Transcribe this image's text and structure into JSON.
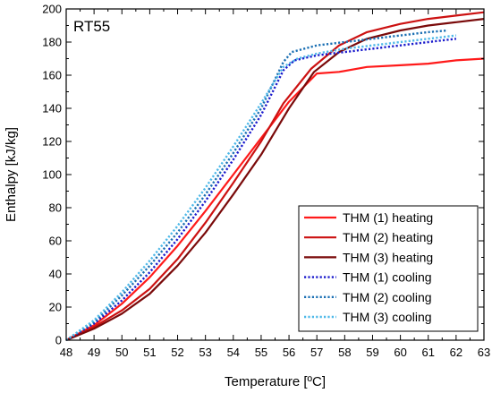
{
  "chart_data": {
    "type": "line",
    "annotation": "RT55",
    "xlabel": "Temperature [ºC]",
    "ylabel": "Enthalpy [kJ/kg]",
    "xlim": [
      48,
      63
    ],
    "ylim": [
      0,
      200
    ],
    "xticks": [
      48,
      49,
      50,
      51,
      52,
      53,
      54,
      55,
      56,
      57,
      58,
      59,
      60,
      61,
      62,
      63
    ],
    "yticks": [
      0,
      20,
      40,
      60,
      80,
      100,
      120,
      140,
      160,
      180,
      200
    ],
    "grid": false,
    "legend_position": "bottom-right",
    "series": [
      {
        "name": "THM (1) heating",
        "color": "#ff1a1a",
        "style": "solid",
        "points": [
          [
            48,
            0
          ],
          [
            49,
            9
          ],
          [
            50,
            22
          ],
          [
            51,
            38
          ],
          [
            52,
            57
          ],
          [
            53,
            78
          ],
          [
            54,
            100
          ],
          [
            55,
            122
          ],
          [
            56,
            144
          ],
          [
            57,
            161
          ],
          [
            57.8,
            162
          ],
          [
            58.8,
            165
          ],
          [
            60,
            166
          ],
          [
            61,
            167
          ],
          [
            62,
            169
          ],
          [
            63,
            170
          ]
        ]
      },
      {
        "name": "THM (2) heating",
        "color": "#cc1111",
        "style": "solid",
        "points": [
          [
            48,
            0
          ],
          [
            49,
            8
          ],
          [
            50,
            18
          ],
          [
            51,
            31
          ],
          [
            52,
            49
          ],
          [
            53,
            71
          ],
          [
            54,
            95
          ],
          [
            55,
            120
          ],
          [
            55.8,
            143
          ],
          [
            56.8,
            164
          ],
          [
            57.8,
            178
          ],
          [
            58.8,
            186
          ],
          [
            60,
            191
          ],
          [
            61,
            194
          ],
          [
            62,
            196
          ],
          [
            63,
            198
          ]
        ]
      },
      {
        "name": "THM (3) heating",
        "color": "#7a0a0a",
        "style": "solid",
        "points": [
          [
            48,
            0
          ],
          [
            49,
            7
          ],
          [
            50,
            16
          ],
          [
            51,
            28
          ],
          [
            52,
            45
          ],
          [
            53,
            65
          ],
          [
            54,
            88
          ],
          [
            55,
            112
          ],
          [
            56,
            140
          ],
          [
            56.9,
            162
          ],
          [
            57.8,
            174
          ],
          [
            58.8,
            182
          ],
          [
            60,
            187
          ],
          [
            61,
            190
          ],
          [
            62,
            192
          ],
          [
            63,
            194
          ]
        ]
      },
      {
        "name": "THM (1) cooling",
        "color": "#1a1acc",
        "style": "dotted",
        "points": [
          [
            48,
            0
          ],
          [
            49,
            10
          ],
          [
            50,
            24
          ],
          [
            51,
            41
          ],
          [
            52,
            61
          ],
          [
            53,
            84
          ],
          [
            54,
            109
          ],
          [
            55,
            136
          ],
          [
            55.8,
            163
          ],
          [
            56.2,
            169
          ],
          [
            57,
            172
          ],
          [
            58,
            174
          ],
          [
            59,
            176
          ],
          [
            60,
            178
          ],
          [
            61,
            180
          ],
          [
            62,
            182
          ]
        ]
      },
      {
        "name": "THM (2) cooling",
        "color": "#1a6fb3",
        "style": "dotted",
        "points": [
          [
            48,
            0
          ],
          [
            49,
            11
          ],
          [
            50,
            27
          ],
          [
            51,
            45
          ],
          [
            52,
            65
          ],
          [
            53,
            88
          ],
          [
            54,
            113
          ],
          [
            55,
            140
          ],
          [
            55.8,
            168
          ],
          [
            56.1,
            174
          ],
          [
            57,
            178
          ],
          [
            58,
            180
          ],
          [
            59,
            182
          ],
          [
            60,
            184
          ],
          [
            61,
            186
          ],
          [
            61.7,
            187
          ]
        ]
      },
      {
        "name": "THM (3) cooling",
        "color": "#4db8e8",
        "style": "dotted",
        "points": [
          [
            48,
            0
          ],
          [
            49,
            12
          ],
          [
            50,
            29
          ],
          [
            51,
            48
          ],
          [
            52,
            69
          ],
          [
            53,
            92
          ],
          [
            54,
            117
          ],
          [
            55,
            143
          ],
          [
            55.8,
            165
          ],
          [
            56.3,
            170
          ],
          [
            57,
            173
          ],
          [
            58,
            176
          ],
          [
            59,
            178
          ],
          [
            60,
            180
          ],
          [
            61,
            182
          ],
          [
            62,
            184
          ]
        ]
      }
    ]
  }
}
